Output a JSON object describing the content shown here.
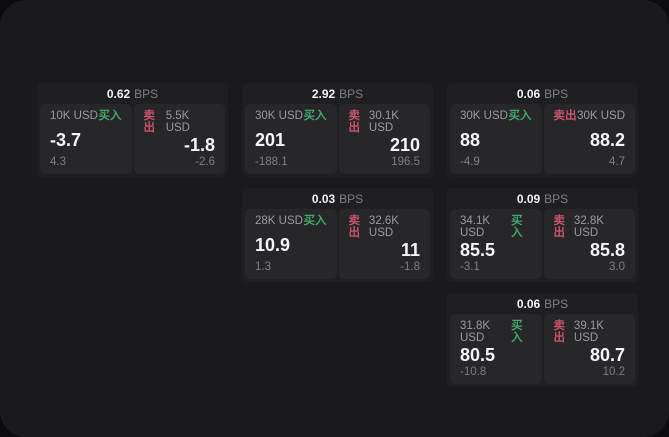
{
  "labels": {
    "buy": "买入",
    "sell": "卖出",
    "bps": "BPS"
  },
  "colors": {
    "background": "#0c0c0e",
    "window": "#1a1a1c",
    "card": "#1f1f22",
    "panel": "#27272a",
    "buy_accent": "#45a56b",
    "sell_accent": "#c9536b"
  },
  "cards": [
    {
      "bps": "0.62",
      "buy": {
        "amount": "10K USD",
        "value": "-3.7",
        "sub": "4.3"
      },
      "sell": {
        "amount": "5.5K USD",
        "value": "-1.8",
        "sub": "-2.6"
      }
    },
    {
      "bps": "2.92",
      "buy": {
        "amount": "30K USD",
        "value": "201",
        "sub": "-188.1"
      },
      "sell": {
        "amount": "30.1K USD",
        "value": "210",
        "sub": "196.5"
      }
    },
    {
      "bps": "0.06",
      "buy": {
        "amount": "30K USD",
        "value": "88",
        "sub": "-4.9"
      },
      "sell": {
        "amount": "30K USD",
        "value": "88.2",
        "sub": "4.7"
      }
    },
    {
      "bps": "0.03",
      "buy": {
        "amount": "28K USD",
        "value": "10.9",
        "sub": "1.3"
      },
      "sell": {
        "amount": "32.6K USD",
        "value": "11",
        "sub": "-1.8"
      }
    },
    {
      "bps": "0.09",
      "buy": {
        "amount": "34.1K USD",
        "value": "85.5",
        "sub": "-3.1"
      },
      "sell": {
        "amount": "32.8K USD",
        "value": "85.8",
        "sub": "3.0"
      }
    },
    {
      "bps": "0.06",
      "buy": {
        "amount": "31.8K USD",
        "value": "80.5",
        "sub": "-10.8"
      },
      "sell": {
        "amount": "39.1K USD",
        "value": "80.7",
        "sub": "10.2"
      }
    }
  ]
}
